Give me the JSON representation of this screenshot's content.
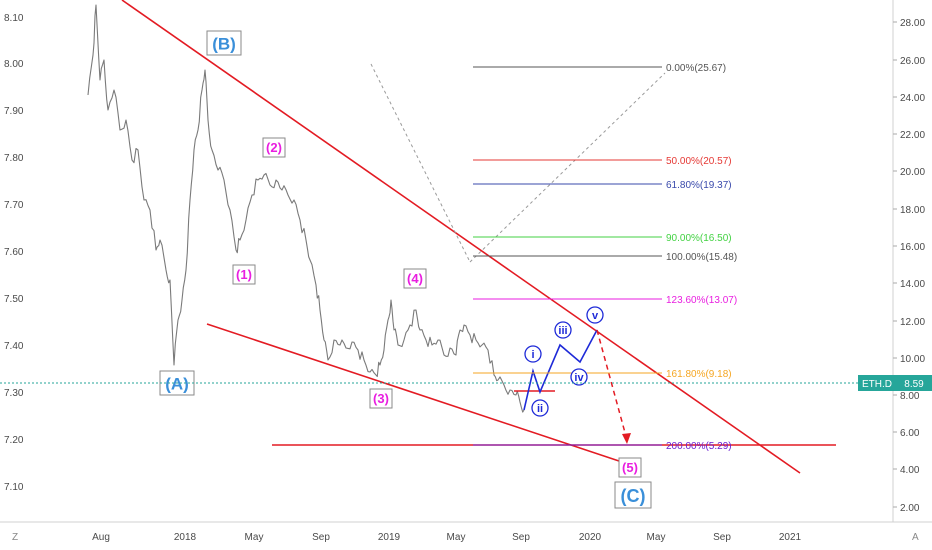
{
  "chart_data": {
    "type": "line",
    "symbol_badge": "ETH.D",
    "last_value": "8.59",
    "left_axis": {
      "ticks": [
        "8.10",
        "8.00",
        "7.90",
        "7.80",
        "7.70",
        "7.60",
        "7.50",
        "7.40",
        "7.30",
        "7.20",
        "7.10"
      ]
    },
    "right_axis": {
      "ticks": [
        "28.00",
        "26.00",
        "24.00",
        "22.00",
        "20.00",
        "18.00",
        "16.00",
        "14.00",
        "12.00",
        "10.00",
        "8.00",
        "6.00",
        "4.00",
        "2.00"
      ]
    },
    "x_ticks": [
      "Aug",
      "2018",
      "May",
      "Sep",
      "2019",
      "May",
      "Sep",
      "2020",
      "May",
      "Sep",
      "2021"
    ],
    "wave_labels": {
      "A": "(A)",
      "B": "(B)",
      "C": "(C)",
      "w1": "(1)",
      "w2": "(2)",
      "w3": "(3)",
      "w4": "(4)",
      "w5": "(5)",
      "i": "i",
      "ii": "ii",
      "iii": "iii",
      "iv": "iv",
      "v": "v"
    },
    "fib_levels": [
      {
        "label": "0.00%(25.67)",
        "color": "#555555"
      },
      {
        "label": "50.00%(20.57)",
        "color": "#e53935"
      },
      {
        "label": "61.80%(19.37)",
        "color": "#3949ab"
      },
      {
        "label": "90.00%(16.50)",
        "color": "#43d243"
      },
      {
        "label": "100.00%(15.48)",
        "color": "#555555"
      },
      {
        "label": "123.60%(13.07)",
        "color": "#e91ee0"
      },
      {
        "label": "161.80%(9.18)",
        "color": "#f5a623"
      },
      {
        "label": "200.00%(5.29)",
        "color": "#6a1fd1"
      }
    ],
    "corner_left": "Z",
    "corner_right": "A",
    "colors": {
      "trendline": "#e31b23",
      "price": "#7a7a7a",
      "wave_pink": "#e91ee0",
      "wave_blue": "#1e2ad8",
      "abc": "#3a8fd9",
      "current": "#26a69a"
    }
  }
}
